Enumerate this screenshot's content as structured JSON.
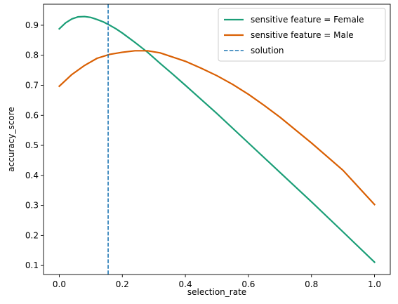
{
  "chart_data": {
    "type": "line",
    "title": "",
    "xlabel": "selection_rate",
    "ylabel": "accuracy_score",
    "xlim": [
      -0.05,
      1.05
    ],
    "ylim": [
      0.07,
      0.97
    ],
    "xticks": [
      0.0,
      0.2,
      0.4,
      0.6,
      0.8,
      1.0
    ],
    "xtick_labels": [
      "0.0",
      "0.2",
      "0.4",
      "0.6",
      "0.8",
      "1.0"
    ],
    "yticks": [
      0.1,
      0.2,
      0.3,
      0.4,
      0.5,
      0.6,
      0.7,
      0.8,
      0.9
    ],
    "ytick_labels": [
      "0.1",
      "0.2",
      "0.3",
      "0.4",
      "0.5",
      "0.6",
      "0.7",
      "0.8",
      "0.9"
    ],
    "grid": false,
    "legend_position": "top-right",
    "series": [
      {
        "name": "sensitive feature = Female",
        "color": "#1b9e77",
        "style": "solid",
        "x": [
          0.0,
          0.02,
          0.04,
          0.06,
          0.08,
          0.1,
          0.12,
          0.14,
          0.16,
          0.18,
          0.2,
          0.24,
          0.28,
          0.32,
          0.36,
          0.4,
          0.5,
          0.6,
          0.7,
          0.8,
          0.9,
          1.0
        ],
        "y": [
          0.888,
          0.908,
          0.921,
          0.928,
          0.929,
          0.926,
          0.919,
          0.911,
          0.9,
          0.888,
          0.874,
          0.843,
          0.81,
          0.773,
          0.737,
          0.7,
          0.606,
          0.508,
          0.41,
          0.312,
          0.212,
          0.111
        ]
      },
      {
        "name": "sensitive feature = Male",
        "color": "#d95f02",
        "style": "solid",
        "x": [
          0.0,
          0.04,
          0.08,
          0.12,
          0.16,
          0.2,
          0.24,
          0.28,
          0.32,
          0.36,
          0.4,
          0.45,
          0.5,
          0.55,
          0.6,
          0.65,
          0.7,
          0.8,
          0.9,
          1.0
        ],
        "y": [
          0.697,
          0.736,
          0.766,
          0.79,
          0.803,
          0.81,
          0.815,
          0.815,
          0.808,
          0.794,
          0.78,
          0.757,
          0.732,
          0.703,
          0.67,
          0.633,
          0.594,
          0.508,
          0.417,
          0.303
        ]
      }
    ],
    "vlines": [
      {
        "name": "solution",
        "x": 0.155,
        "color": "#1f77b4",
        "style": "dashed"
      }
    ]
  }
}
